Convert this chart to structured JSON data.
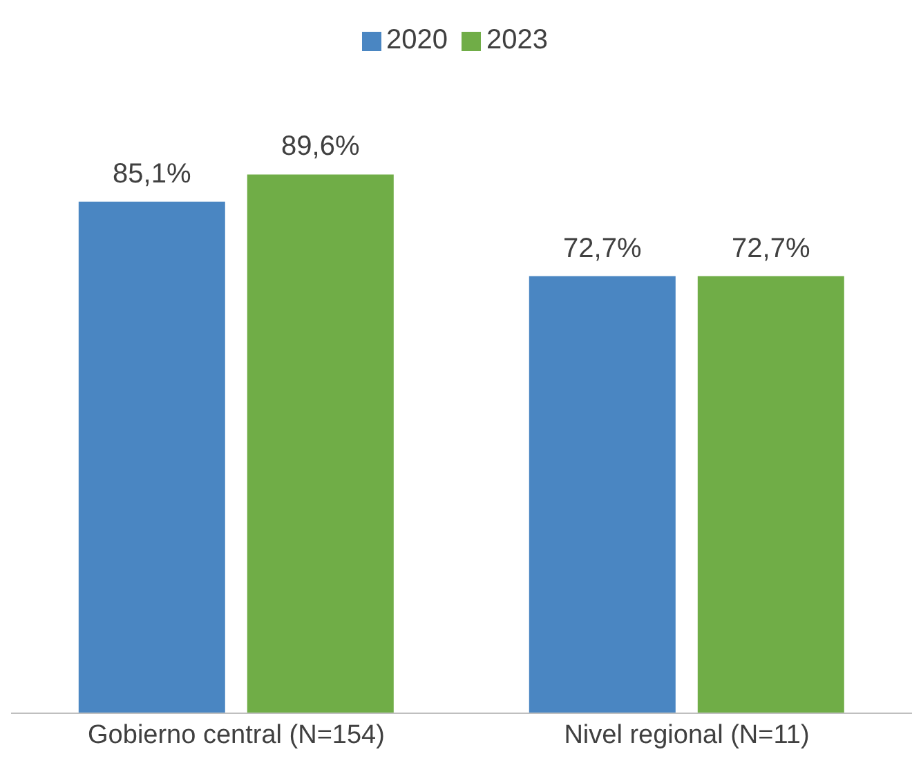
{
  "chart_data": {
    "type": "bar",
    "categories": [
      "Gobierno central (N=154)",
      "Nivel regional (N=11)"
    ],
    "series": [
      {
        "name": "2020",
        "color": "#4a86c2",
        "values": [
          85.1,
          72.7
        ],
        "value_labels": [
          "85,1%",
          "72,7%"
        ]
      },
      {
        "name": "2023",
        "color": "#70ad47",
        "values": [
          89.6,
          72.7
        ],
        "value_labels": [
          "89,6%",
          "72,7%"
        ]
      }
    ],
    "legend": "top",
    "grid": false
  }
}
